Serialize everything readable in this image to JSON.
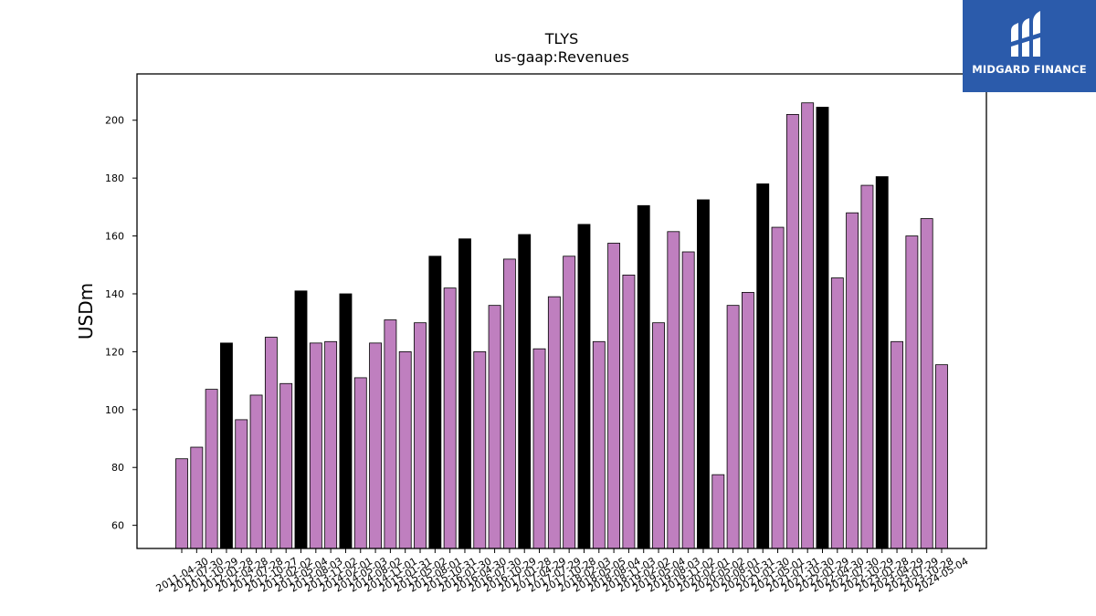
{
  "brand": {
    "name": "MIDGARD FINANCE",
    "bg_color": "#2b5bab"
  },
  "chart_data": {
    "type": "bar",
    "title": "TLYS",
    "subtitle": "us-gaap:Revenues",
    "xlabel": "",
    "ylabel": "USDm",
    "ylim": [
      52,
      216
    ],
    "yticks": [
      60,
      80,
      100,
      120,
      140,
      160,
      180,
      200
    ],
    "grid": false,
    "colors": {
      "quarter": "#bf7fbf",
      "annual": "#000000",
      "edge": "#000000"
    },
    "categories": [
      "2011-04-30",
      "2011-07-30",
      "2011-10-29",
      "2012-01-28",
      "2012-04-28",
      "2012-07-28",
      "2012-10-27",
      "2013-02-02",
      "2013-05-04",
      "2013-08-03",
      "2013-11-02",
      "2014-02-01",
      "2014-05-03",
      "2014-08-02",
      "2014-11-01",
      "2015-01-31",
      "2015-05-02",
      "2015-08-01",
      "2015-10-31",
      "2016-01-30",
      "2016-04-30",
      "2016-07-30",
      "2016-10-29",
      "2017-01-28",
      "2017-04-29",
      "2017-07-29",
      "2017-10-28",
      "2018-02-03",
      "2018-05-05",
      "2018-08-04",
      "2018-11-03",
      "2019-02-02",
      "2019-05-04",
      "2019-08-03",
      "2019-11-02",
      "2020-02-01",
      "2020-05-02",
      "2020-08-01",
      "2020-10-31",
      "2021-01-30",
      "2021-05-01",
      "2021-07-31",
      "2021-10-30",
      "2022-01-29",
      "2022-04-30",
      "2022-07-30",
      "2022-10-29",
      "2023-01-28",
      "2023-04-29",
      "2023-07-29",
      "2023-10-28",
      "2024-05-04"
    ],
    "values": [
      83,
      87,
      107,
      123,
      96.5,
      105,
      125,
      109,
      141,
      123,
      123.5,
      140,
      111,
      123,
      131,
      120,
      130,
      153,
      142,
      159,
      120,
      136,
      152,
      160.5,
      121,
      139,
      153,
      164,
      123.5,
      157.5,
      146.5,
      170.5,
      130,
      161.5,
      154.5,
      172.5,
      77.5,
      136,
      140.5,
      178,
      163,
      202,
      206,
      204.5,
      145.5,
      168,
      177.5,
      180.5,
      123.5,
      160,
      166,
      115.5
    ],
    "highlight": [
      false,
      false,
      false,
      true,
      false,
      false,
      false,
      false,
      true,
      false,
      false,
      true,
      false,
      false,
      false,
      false,
      false,
      true,
      false,
      true,
      false,
      false,
      false,
      true,
      false,
      false,
      false,
      true,
      false,
      false,
      false,
      true,
      false,
      false,
      false,
      true,
      false,
      false,
      false,
      true,
      false,
      false,
      false,
      true,
      false,
      false,
      false,
      true,
      false,
      false,
      false,
      false
    ]
  }
}
